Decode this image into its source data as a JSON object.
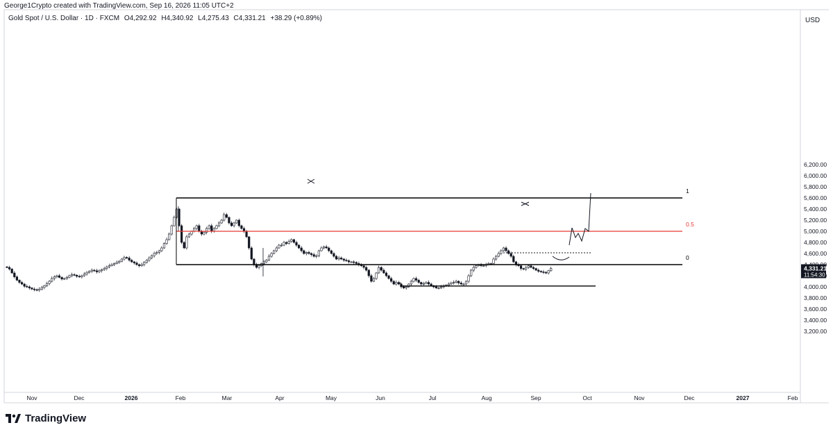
{
  "header": {
    "credit": "George1Crypto created with TradingView.com, Sep 16, 2026 11:05 UTC+2"
  },
  "symbol": {
    "name": "Gold Spot / U.S. Dollar · 1D · FXCM",
    "open": "O4,292.92",
    "high": "H4,340.92",
    "low": "L4,275.43",
    "close": "C4,331.21",
    "change": "+38.29 (+0.89%)"
  },
  "price_axis": {
    "currency": "USD",
    "ticks": [
      "6,200.00",
      "6,000.00",
      "5,800.00",
      "5,600.00",
      "5,400.00",
      "5,200.00",
      "5,000.00",
      "4,800.00",
      "4,600.00",
      "4,400.00",
      "4,200.00",
      "4,000.00",
      "3,800.00",
      "3,600.00",
      "3,400.00",
      "3,200.00"
    ]
  },
  "current_price": {
    "price": "4,331.21",
    "countdown": "11:54:30"
  },
  "time_axis": {
    "labels": [
      "Nov",
      "Dec",
      "2026",
      "Feb",
      "Mar",
      "Apr",
      "May",
      "Jun",
      "Jul",
      "Aug",
      "Sep",
      "Oct",
      "Nov",
      "Dec",
      "2027",
      "Feb"
    ]
  },
  "fib_labels": {
    "one": "1",
    "half": "0.5",
    "zero": "0"
  },
  "brand": {
    "name": "TradingView"
  },
  "colors": {
    "candle_up": "#131722",
    "candle_down": "#131722",
    "fib_half": "#e53935",
    "level_line": "#000000"
  },
  "chart_data": {
    "type": "candlestick",
    "ylim": [
      3050,
      6300
    ],
    "x_axis_labels": [
      "Nov",
      "Dec",
      "2026",
      "Feb",
      "Mar",
      "Apr",
      "May",
      "Jun",
      "Jul",
      "Aug",
      "Sep",
      "Oct",
      "Nov",
      "Dec",
      "2027",
      "Feb"
    ],
    "levels": [
      {
        "label": "1",
        "price": 5600
      },
      {
        "label": "0.5",
        "price": 5000
      },
      {
        "label": "0",
        "price": 4400
      },
      {
        "label": "",
        "price": 4015
      }
    ],
    "last": {
      "open": 4292.92,
      "high": 4340.92,
      "low": 4275.43,
      "close": 4331.21,
      "change": 38.29,
      "change_pct": 0.89
    },
    "approx_closes": [
      4350,
      4320,
      4250,
      4180,
      4120,
      4080,
      4050,
      4010,
      4000,
      3980,
      3960,
      3950,
      3940,
      3960,
      3990,
      4020,
      4060,
      4100,
      4150,
      4180,
      4200,
      4170,
      4140,
      4150,
      4170,
      4200,
      4220,
      4210,
      4190,
      4180,
      4200,
      4230,
      4260,
      4280,
      4300,
      4290,
      4270,
      4290,
      4310,
      4330,
      4360,
      4380,
      4400,
      4420,
      4440,
      4460,
      4500,
      4530,
      4520,
      4480,
      4450,
      4430,
      4400,
      4380,
      4400,
      4440,
      4480,
      4520,
      4560,
      4600,
      4620,
      4650,
      4700,
      4780,
      4850,
      4950,
      5100,
      5250,
      5400,
      5100,
      4800,
      4700,
      4900,
      4950,
      5000,
      5050,
      5100,
      5000,
      4950,
      4980,
      5050,
      5100,
      5000,
      5050,
      5100,
      5150,
      5200,
      5300,
      5250,
      5150,
      5100,
      5150,
      5200,
      5100,
      5050,
      5000,
      4900,
      4700,
      4500,
      4400,
      4350,
      4380,
      4420,
      4450,
      4480,
      4550,
      4600,
      4650,
      4700,
      4750,
      4750,
      4800,
      4780,
      4820,
      4850,
      4800,
      4750,
      4700,
      4650,
      4600,
      4620,
      4600,
      4580,
      4550,
      4560,
      4650,
      4700,
      4720,
      4700,
      4650,
      4600,
      4550,
      4500,
      4520,
      4500,
      4480,
      4470,
      4450,
      4450,
      4440,
      4420,
      4400,
      4380,
      4350,
      4300,
      4200,
      4100,
      4150,
      4250,
      4350,
      4300,
      4250,
      4200,
      4150,
      4100,
      4050,
      4080,
      4050,
      4000,
      3980,
      4000,
      4050,
      4100,
      4150,
      4120,
      4080,
      4050,
      4060,
      4080,
      4050,
      4020,
      4000,
      3980,
      3980,
      4000,
      4020,
      4030,
      4050,
      4070,
      4080,
      4100,
      4070,
      4050,
      4050,
      4100,
      4200,
      4300,
      4350,
      4380,
      4400,
      4380,
      4380,
      4400,
      4420,
      4420,
      4500,
      4550,
      4600,
      4650,
      4700,
      4650,
      4600,
      4550,
      4450,
      4400,
      4380,
      4330,
      4320,
      4350,
      4380,
      4350,
      4330,
      4300,
      4280,
      4270,
      4260,
      4250,
      4290,
      4331
    ]
  }
}
